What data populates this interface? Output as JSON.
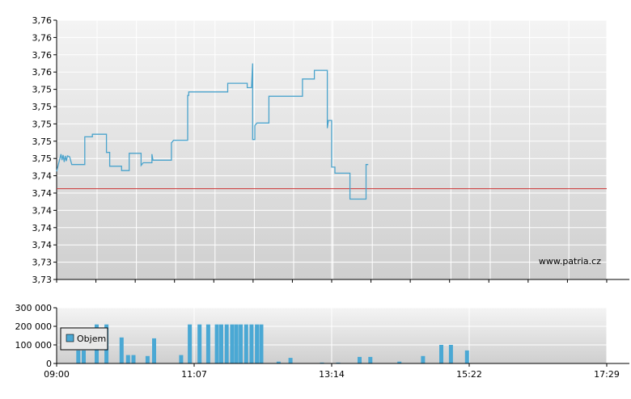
{
  "watermark": "www.patria.cz",
  "colors": {
    "price_line": "#4aa3cc",
    "reference_line": "#cc3333",
    "volume_bar": "#4aa8d4",
    "grid": "#ffffff",
    "bg_top": "#f4f4f4",
    "bg_bottom": "#cfcfcf"
  },
  "chart_data": [
    {
      "type": "line",
      "title": "",
      "xlabel": "",
      "ylabel": "",
      "ylim": [
        3.73,
        3.76
      ],
      "y_tick_labels": [
        "3,76",
        "3,76",
        "3,76",
        "3,76",
        "3,75",
        "3,75",
        "3,75",
        "3,75",
        "3,75",
        "3,74",
        "3,74",
        "3,74",
        "3,74",
        "3,74",
        "3,73",
        "3,73"
      ],
      "reference_value": 3.7405,
      "grid": true,
      "series": [
        {
          "points": [
            [
              "09:00",
              3.7425
            ],
            [
              "09:02",
              3.7435
            ],
            [
              "09:04",
              3.7445
            ],
            [
              "09:05",
              3.7438
            ],
            [
              "09:06",
              3.7444
            ],
            [
              "09:07",
              3.7436
            ],
            [
              "09:08",
              3.7443
            ],
            [
              "09:09",
              3.7437
            ],
            [
              "09:10",
              3.7443
            ],
            [
              "09:12",
              3.7442
            ],
            [
              "09:14",
              3.7433
            ],
            [
              "09:26",
              3.7433
            ],
            [
              "09:26",
              3.7465
            ],
            [
              "09:33",
              3.7465
            ],
            [
              "09:33",
              3.7468
            ],
            [
              "09:46",
              3.7468
            ],
            [
              "09:46",
              3.7447
            ],
            [
              "09:49",
              3.7447
            ],
            [
              "09:49",
              3.7431
            ],
            [
              "10:00",
              3.7431
            ],
            [
              "10:00",
              3.7426
            ],
            [
              "10:07",
              3.7426
            ],
            [
              "10:07",
              3.7446
            ],
            [
              "10:18",
              3.7446
            ],
            [
              "10:18",
              3.7432
            ],
            [
              "10:20",
              3.7435
            ],
            [
              "10:28",
              3.7435
            ],
            [
              "10:28",
              3.7445
            ],
            [
              "10:29",
              3.7438
            ],
            [
              "10:46",
              3.7438
            ],
            [
              "10:46",
              3.7458
            ],
            [
              "10:48",
              3.7461
            ],
            [
              "11:01",
              3.7461
            ],
            [
              "11:01",
              3.7513
            ],
            [
              "11:02",
              3.7513
            ],
            [
              "11:02",
              3.7517
            ],
            [
              "11:38",
              3.7517
            ],
            [
              "11:38",
              3.7527
            ],
            [
              "11:56",
              3.7527
            ],
            [
              "11:56",
              3.7522
            ],
            [
              "12:00",
              3.7522
            ],
            [
              "12:01",
              3.755
            ],
            [
              "12:01",
              3.7462
            ],
            [
              "12:03",
              3.7462
            ],
            [
              "12:03",
              3.7478
            ],
            [
              "12:05",
              3.7481
            ],
            [
              "12:16",
              3.7481
            ],
            [
              "12:16",
              3.7512
            ],
            [
              "12:47",
              3.7512
            ],
            [
              "12:47",
              3.7532
            ],
            [
              "12:58",
              3.7532
            ],
            [
              "12:58",
              3.7542
            ],
            [
              "13:10",
              3.7542
            ],
            [
              "13:10",
              3.7475
            ],
            [
              "13:11",
              3.7484
            ],
            [
              "13:14",
              3.7484
            ],
            [
              "13:14",
              3.743
            ],
            [
              "13:17",
              3.743
            ],
            [
              "13:17",
              3.7423
            ],
            [
              "13:31",
              3.7423
            ],
            [
              "13:31",
              3.7393
            ],
            [
              "13:46",
              3.7393
            ],
            [
              "13:46",
              3.7433
            ],
            [
              "13:48",
              3.7433
            ]
          ]
        }
      ]
    },
    {
      "type": "bar",
      "title": "",
      "xlabel": "",
      "ylabel": "",
      "ylim": [
        0,
        300000
      ],
      "y_tick_labels": [
        "300 000",
        "200 000",
        "100 000",
        "0"
      ],
      "x_tick_labels": [
        "09:00",
        "11:07",
        "13:14",
        "15:22",
        "17:29"
      ],
      "grid": true,
      "legend": "top-left",
      "series": [
        {
          "name": "Objem",
          "bars": [
            [
              "09:20",
              70000
            ],
            [
              "09:25",
              70000
            ],
            [
              "09:37",
              210000
            ],
            [
              "09:46",
              210000
            ],
            [
              "10:00",
              140000
            ],
            [
              "10:06",
              45000
            ],
            [
              "10:11",
              45000
            ],
            [
              "10:24",
              40000
            ],
            [
              "10:30",
              135000
            ],
            [
              "10:55",
              45000
            ],
            [
              "11:03",
              210000
            ],
            [
              "11:12",
              210000
            ],
            [
              "11:20",
              210000
            ],
            [
              "11:28",
              210000
            ],
            [
              "11:32",
              210000
            ],
            [
              "11:37",
              210000
            ],
            [
              "11:42",
              210000
            ],
            [
              "11:46",
              210000
            ],
            [
              "11:50",
              210000
            ],
            [
              "11:55",
              210000
            ],
            [
              "12:00",
              210000
            ],
            [
              "12:05",
              210000
            ],
            [
              "12:09",
              210000
            ],
            [
              "12:25",
              10000
            ],
            [
              "12:36",
              30000
            ],
            [
              "13:05",
              5000
            ],
            [
              "13:20",
              5000
            ],
            [
              "13:40",
              35000
            ],
            [
              "13:50",
              35000
            ],
            [
              "14:17",
              10000
            ],
            [
              "14:39",
              40000
            ],
            [
              "14:56",
              100000
            ],
            [
              "15:05",
              100000
            ],
            [
              "15:20",
              70000
            ]
          ]
        }
      ]
    }
  ]
}
